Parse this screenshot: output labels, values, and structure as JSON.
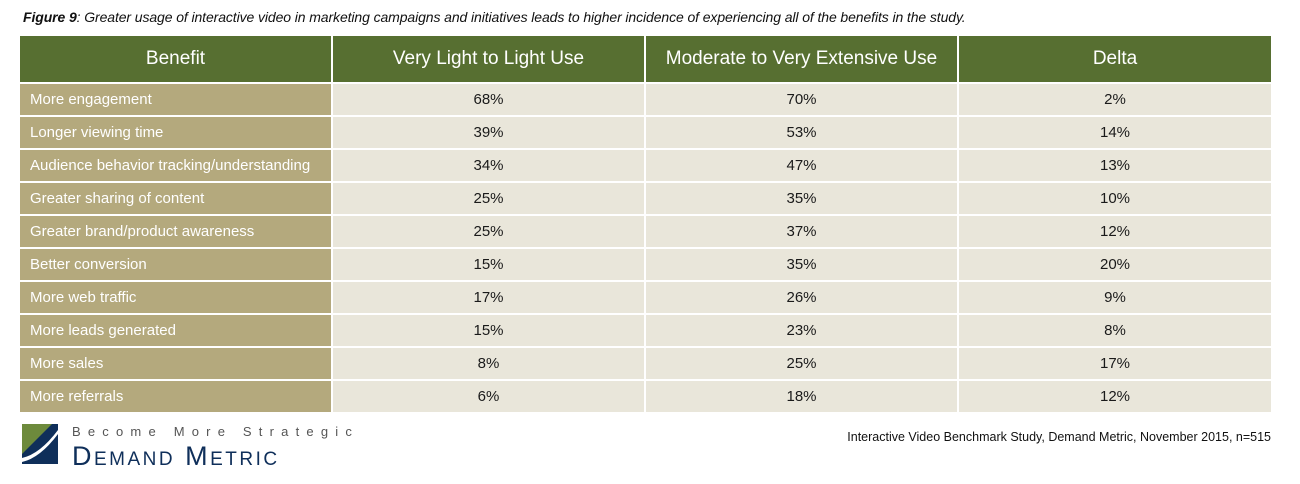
{
  "caption": {
    "label": "Figure 9",
    "text": ": Greater usage of interactive video in marketing campaigns and initiatives leads to higher incidence of experiencing all of the benefits in the study."
  },
  "table": {
    "headers": [
      "Benefit",
      "Very Light to Light Use",
      "Moderate to Very Extensive Use",
      "Delta"
    ],
    "rows": [
      [
        "More engagement",
        "68%",
        "70%",
        "2%"
      ],
      [
        "Longer viewing time",
        "39%",
        "53%",
        "14%"
      ],
      [
        "Audience behavior tracking/understanding",
        "34%",
        "47%",
        "13%"
      ],
      [
        "Greater sharing of content",
        "25%",
        "35%",
        "10%"
      ],
      [
        "Greater brand/product awareness",
        "25%",
        "37%",
        "12%"
      ],
      [
        "Better conversion",
        "15%",
        "35%",
        "20%"
      ],
      [
        "More web traffic",
        "17%",
        "26%",
        "9%"
      ],
      [
        "More leads generated",
        "15%",
        "23%",
        "8%"
      ],
      [
        "More sales",
        "8%",
        "25%",
        "17%"
      ],
      [
        "More referrals",
        "6%",
        "18%",
        "12%"
      ]
    ]
  },
  "logo": {
    "tagline": "Become More Strategic",
    "brand": "Demand Metric",
    "icon": "demand-metric-logo-icon"
  },
  "source": "Interactive Video Benchmark Study, Demand Metric, November 2015, n=515",
  "colors": {
    "header_bg": "#576f31",
    "benefit_bg": "#b4a97d",
    "cell_bg": "#e9e6da",
    "brand_blue": "#0f2f5a"
  }
}
